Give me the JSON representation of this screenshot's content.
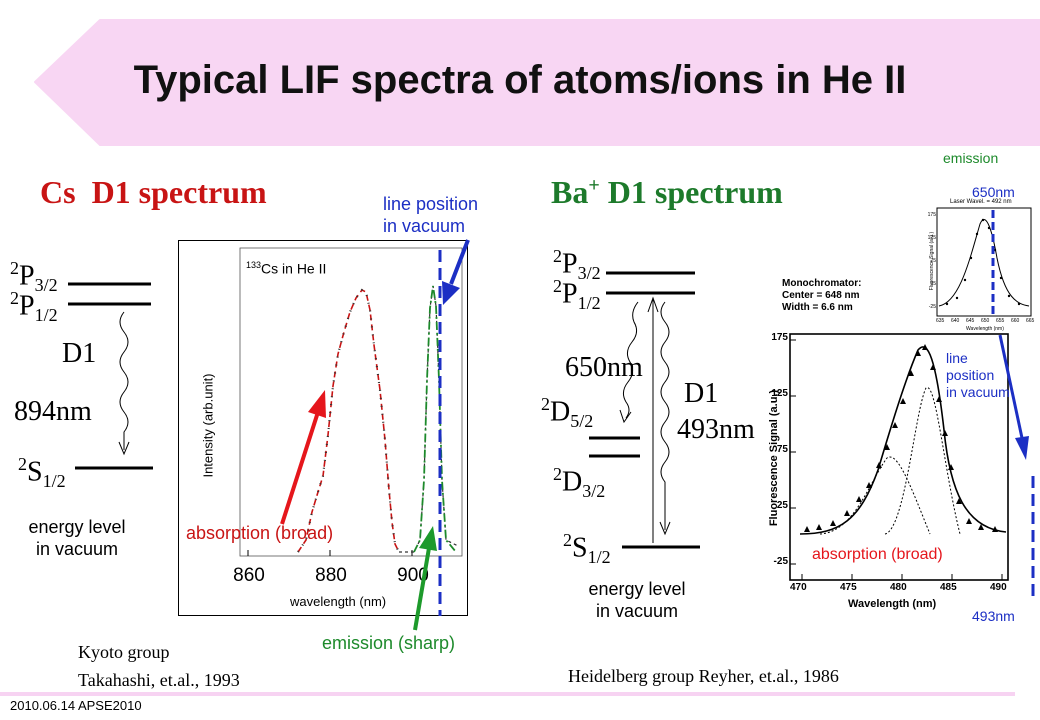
{
  "title": "Typical LIF spectra of atoms/ions in He II",
  "footer": "2010.06.14 APSE2010",
  "colors": {
    "banner": "#f8d6f3",
    "red": "#c81414",
    "green": "#1d8a2b",
    "blue": "#1c2fc4"
  },
  "cs": {
    "heading": "Cs  D1 spectrum",
    "p32": {
      "main": "P",
      "sup": "2",
      "sub": "3/2"
    },
    "p12": {
      "main": "P",
      "sup": "2",
      "sub": "1/2"
    },
    "s12": {
      "main": "S",
      "sup": "2",
      "sub": "1/2"
    },
    "d1": "D1",
    "wavelength": "894nm",
    "energy_line1": "energy level",
    "energy_line2": "in vacuum",
    "line_pos1": "line position",
    "line_pos2": "in vacuum",
    "absorption": "absorption (broad)",
    "emission": "emission (sharp)",
    "plot": {
      "inset_sup": "133",
      "inset_text": "Cs in He II",
      "ylabel": "Intensity (arb.unit)",
      "xlabel": "wavelength (nm)",
      "xticks": [
        "860",
        "880",
        "900"
      ]
    },
    "ref1": "Kyoto group",
    "ref2": "Takahashi, et.al., 1993"
  },
  "ba": {
    "heading_main": "Ba",
    "heading_sup": "+",
    "heading_rest": " D1 spectrum",
    "p32": {
      "main": "P",
      "sup": "2",
      "sub": "3/2"
    },
    "p12": {
      "main": "P",
      "sup": "2",
      "sub": "1/2"
    },
    "d52": {
      "main": "D",
      "sup": "2",
      "sub": "5/2"
    },
    "d32": {
      "main": "D",
      "sup": "2",
      "sub": "3/2"
    },
    "s12": {
      "main": "S",
      "sup": "2",
      "sub": "1/2"
    },
    "w650": "650nm",
    "d1": "D1",
    "w493": "493nm",
    "energy_line1": "energy level",
    "energy_line2": "in vacuum",
    "emission": "emission",
    "emission_wl": "650nm",
    "line_pos1": "line",
    "line_pos2": "position",
    "line_pos3": "in vacuum",
    "absorption": "absorption (broad)",
    "right_wl": "493nm",
    "plot": {
      "mono1": "Monochromator:",
      "mono2": "Center = 648 nm",
      "mono3": "Width = 6.6 nm",
      "ylabel": "Fluorescence Signal (a.u.)",
      "xlabel": "Wavelength (nm)",
      "yticks": [
        "175",
        "125",
        "75",
        "25",
        "-25"
      ],
      "xticks": [
        "470",
        "475",
        "480",
        "485",
        "490"
      ]
    },
    "inset": {
      "header": "Laser Wavel. = 492 nm",
      "ylabel": "Fluorescence Signal (a.u.)",
      "xlabel": "Wavelength (nm)",
      "yticks": [
        "175",
        "125",
        "75",
        "25",
        "-25"
      ],
      "xticks": [
        "635",
        "640",
        "645",
        "650",
        "655",
        "660",
        "665"
      ]
    },
    "ref": "Heidelberg group Reyher, et.al., 1986"
  }
}
